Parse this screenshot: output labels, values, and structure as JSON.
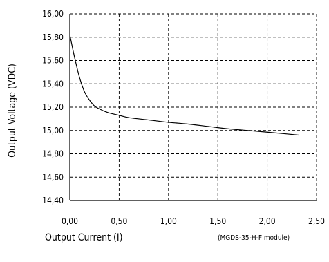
{
  "chart_data": {
    "type": "line",
    "title": "",
    "xlabel": "Output Current (I)",
    "ylabel": "Output Voltage (VDC)",
    "annotation": "(MGDS-35-H-F module)",
    "xlim": [
      0,
      2.5
    ],
    "ylim": [
      14.4,
      16.0
    ],
    "x_ticks": [
      0,
      0.5,
      1.0,
      1.5,
      2.0,
      2.5
    ],
    "x_tick_labels": [
      "0,00",
      "0,50",
      "1,00",
      "1,50",
      "2,00",
      "2,50"
    ],
    "y_ticks": [
      14.4,
      14.6,
      14.8,
      15.0,
      15.2,
      15.4,
      15.6,
      15.8,
      16.0
    ],
    "y_tick_labels": [
      "14,40",
      "14,60",
      "14,80",
      "15,00",
      "15,20",
      "15,40",
      "15,60",
      "15,80",
      "16,00"
    ],
    "grid": true,
    "series": [
      {
        "x": [
          0.0,
          0.05,
          0.1,
          0.15,
          0.2,
          0.25,
          0.3,
          0.35,
          0.4,
          0.5,
          0.6,
          0.8,
          1.0,
          1.2,
          1.4,
          1.6,
          1.8,
          2.0,
          2.2,
          2.32
        ],
        "y": [
          15.82,
          15.62,
          15.45,
          15.33,
          15.26,
          15.21,
          15.185,
          15.165,
          15.15,
          15.13,
          15.11,
          15.09,
          15.07,
          15.055,
          15.035,
          15.015,
          15.0,
          14.985,
          14.97,
          14.96
        ],
        "color": "#000000"
      }
    ]
  }
}
